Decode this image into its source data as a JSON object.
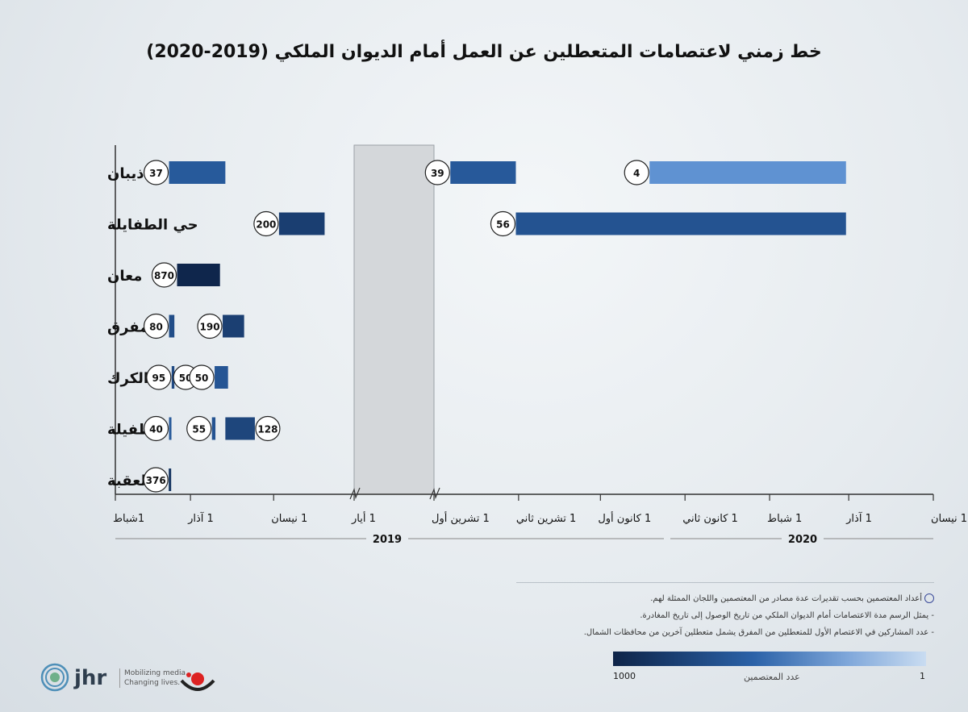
{
  "title": "خط زمني لاعتصامات المتعطلين عن العمل أمام الديوان الملكي (2019-2020)",
  "chart_data": {
    "type": "timeline-bar",
    "title": "خط زمني لاعتصامات المتعطلين عن العمل أمام الديوان الملكي (2019-2020)",
    "axis_break": "1 أيار 2019 – 1 تشرين أول 2019",
    "ticks": [
      {
        "label": "1شباط",
        "t": 0
      },
      {
        "label": "1 آذار",
        "t": 28
      },
      {
        "label": "1 نيسان",
        "t": 59
      },
      {
        "label": "1 أيار",
        "t": 89
      },
      {
        "label": "1 تشرين أول",
        "t": 89.02
      },
      {
        "label": "1 تشرين ثاني",
        "t": 120
      },
      {
        "label": "1 كانون أول",
        "t": 150
      },
      {
        "label": "1 كانون ثاني",
        "t": 181
      },
      {
        "label": "1 شباط",
        "t": 212
      },
      {
        "label": "1 آذار",
        "t": 241
      },
      {
        "label": "1 نيسان",
        "t": 272
      }
    ],
    "years": [
      {
        "label": "2019",
        "t_from": 0,
        "t_to": 181
      },
      {
        "label": "2020",
        "t_from": 181,
        "t_to": 272
      }
    ],
    "rows": [
      {
        "label": "ذيبان",
        "bars": [
          {
            "start": 20,
            "end": 41,
            "count": 37
          },
          {
            "start": 95,
            "end": 119,
            "count": 39
          },
          {
            "start": 168,
            "end": 240,
            "count": 4
          }
        ]
      },
      {
        "label": "حي الطفايلة",
        "bars": [
          {
            "start": 61,
            "end": 78,
            "count": 200
          },
          {
            "start": 119,
            "end": 240,
            "count": 56
          }
        ]
      },
      {
        "label": "معان",
        "bars": [
          {
            "start": 23,
            "end": 39,
            "count": 870
          }
        ]
      },
      {
        "label": "المفرق",
        "bars": [
          {
            "start": 20,
            "end": 22,
            "count": 80
          },
          {
            "start": 40,
            "end": 48,
            "count": 190
          }
        ]
      },
      {
        "label": "الكرك",
        "bars": [
          {
            "start": 21,
            "end": 22,
            "count": 95
          },
          {
            "start": 31,
            "end": 34,
            "count": 50
          },
          {
            "start": 37,
            "end": 42,
            "count": 50
          }
        ]
      },
      {
        "label": "الطفيلة",
        "bars": [
          {
            "start": 20,
            "end": 20.6,
            "count": 40
          },
          {
            "start": 36,
            "end": 37.3,
            "count": 55
          },
          {
            "start": 41,
            "end": 52,
            "count": 128
          }
        ]
      },
      {
        "label": "العقبة",
        "bars": [
          {
            "start": 19.9,
            "end": 20.5,
            "count": 376
          }
        ]
      }
    ],
    "color_scale": {
      "min": 1,
      "max": 1000,
      "min_color": "#c9dcf1",
      "max_color": "#0e2448",
      "label": "عدد المعتصمين"
    }
  },
  "notes": [
    "أعداد المعتصمين بحسب تقديرات عدة مصادر من المعتصمين واللجان الممثلة لهم.",
    "- يمثل الرسم مدة الاعتصامات أمام الديوان الملكي من تاريخ الوصول إلى تاريخ المغادرة.",
    "- عدد المشاركين في الاعتصام الأول للمتعطلين من المفرق يشمل متعطلين آخرين من محافظات الشمال."
  ],
  "legend": {
    "min_label": "1000",
    "max_label": "1",
    "label": "عدد المعتصمين"
  },
  "branding": {
    "jhr": "jhr",
    "tagline_1": "Mobilizing media.",
    "tagline_2": "Changing lives."
  }
}
